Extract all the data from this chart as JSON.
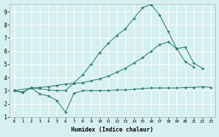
{
  "title": "",
  "xlabel": "Humidex (Indice chaleur)",
  "ylabel": "",
  "background_color": "#d6f0f0",
  "grid_color": "#ffffff",
  "line_color": "#2d7d6e",
  "xlim": [
    -0.5,
    23.5
  ],
  "ylim": [
    1,
    9.6
  ],
  "xticks": [
    0,
    1,
    2,
    3,
    4,
    5,
    6,
    7,
    8,
    9,
    10,
    11,
    12,
    13,
    14,
    15,
    16,
    17,
    18,
    19,
    20,
    21,
    22,
    23
  ],
  "yticks": [
    1,
    2,
    3,
    4,
    5,
    6,
    7,
    8,
    9
  ],
  "series1_x": [
    0,
    1,
    2,
    3,
    4,
    5,
    6,
    7,
    8,
    9,
    10,
    11,
    12,
    13,
    14,
    15,
    16,
    17,
    18,
    19,
    20,
    21,
    22,
    23
  ],
  "series1_y": [
    3.0,
    2.85,
    3.2,
    2.75,
    2.6,
    2.25,
    1.35,
    2.8,
    3.0,
    3.0,
    3.0,
    3.0,
    3.05,
    3.05,
    3.1,
    3.15,
    3.2,
    3.2,
    3.2,
    3.2,
    3.25,
    3.25,
    3.3,
    3.25
  ],
  "series2_x": [
    0,
    1,
    2,
    3,
    4,
    5,
    6,
    7,
    8,
    9,
    10,
    11,
    12,
    13,
    14,
    15,
    16,
    17,
    18,
    19,
    20,
    21,
    22
  ],
  "series2_y": [
    3.0,
    2.9,
    3.2,
    3.15,
    3.05,
    3.0,
    3.0,
    3.6,
    4.2,
    5.0,
    5.9,
    6.6,
    7.2,
    7.7,
    8.5,
    9.3,
    9.55,
    8.75,
    7.5,
    6.2,
    6.3,
    5.1,
    4.7
  ],
  "series3_x": [
    0,
    2,
    3,
    4,
    5,
    6,
    7,
    8,
    9,
    10,
    11,
    12,
    13,
    14,
    15,
    16,
    17,
    18,
    19,
    20,
    21
  ],
  "series3_y": [
    3.0,
    3.2,
    3.25,
    3.3,
    3.4,
    3.5,
    3.55,
    3.6,
    3.75,
    3.9,
    4.1,
    4.4,
    4.7,
    5.1,
    5.5,
    6.0,
    6.5,
    6.7,
    6.2,
    5.2,
    4.8
  ]
}
